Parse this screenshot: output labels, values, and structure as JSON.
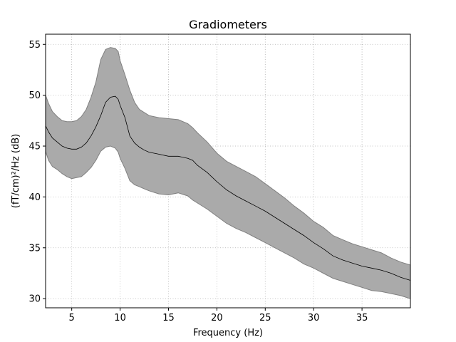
{
  "chart_data": {
    "type": "area",
    "title": "Gradiometers",
    "xlabel": "Frequency (Hz)",
    "ylabel": "(fT/cm)²/Hz (dB)",
    "xlim": [
      2.3,
      40
    ],
    "ylim": [
      29.1,
      56
    ],
    "grid": true,
    "grid_style": "dotted",
    "xticks": [
      5,
      10,
      15,
      20,
      25,
      30,
      35
    ],
    "yticks": [
      30,
      35,
      40,
      45,
      50,
      55
    ],
    "colors": {
      "band": "#aaaaaa",
      "band_edge": "#808080",
      "mean": "#000000"
    },
    "series": [
      {
        "kind": "mean",
        "x": [
          2.3,
          2.6,
          3,
          3.5,
          4,
          4.5,
          5,
          5.5,
          6,
          6.5,
          7,
          7.5,
          8,
          8.5,
          9,
          9.5,
          9.8,
          10,
          10.5,
          11,
          11.5,
          12,
          12.5,
          13,
          14,
          15,
          16,
          17,
          17.5,
          18,
          19,
          20,
          21,
          22,
          23,
          24,
          25,
          26,
          27,
          28,
          29,
          30,
          31,
          32,
          33,
          34,
          35,
          36,
          37,
          38,
          39,
          40
        ],
        "values": [
          47.0,
          46.4,
          45.8,
          45.4,
          45.0,
          44.8,
          44.7,
          44.7,
          44.9,
          45.3,
          46.0,
          46.9,
          48.0,
          49.3,
          49.8,
          49.9,
          49.6,
          49.0,
          47.8,
          46.0,
          45.3,
          44.9,
          44.6,
          44.4,
          44.2,
          44.0,
          44.0,
          43.8,
          43.6,
          43.1,
          42.4,
          41.5,
          40.7,
          40.1,
          39.6,
          39.1,
          38.6,
          38.0,
          37.4,
          36.8,
          36.2,
          35.5,
          34.9,
          34.2,
          33.8,
          33.5,
          33.2,
          33.0,
          32.8,
          32.5,
          32.1,
          31.8
        ]
      },
      {
        "kind": "upper",
        "x": [
          2.3,
          2.6,
          3,
          3.5,
          4,
          4.5,
          5,
          5.5,
          6,
          6.5,
          7,
          7.5,
          8,
          8.5,
          9,
          9.5,
          9.8,
          10,
          10.5,
          11,
          11.5,
          12,
          12.5,
          13,
          14,
          15,
          16,
          17,
          17.5,
          18,
          19,
          20,
          21,
          22,
          23,
          24,
          25,
          26,
          27,
          28,
          29,
          30,
          31,
          32,
          33,
          34,
          35,
          36,
          37,
          38,
          39,
          40
        ],
        "values": [
          50.0,
          49.2,
          48.4,
          47.9,
          47.5,
          47.4,
          47.4,
          47.5,
          47.9,
          48.6,
          49.8,
          51.3,
          53.5,
          54.5,
          54.7,
          54.6,
          54.3,
          53.4,
          52.0,
          50.5,
          49.3,
          48.6,
          48.3,
          48.0,
          47.8,
          47.7,
          47.6,
          47.2,
          46.8,
          46.3,
          45.4,
          44.3,
          43.5,
          43.0,
          42.5,
          42.0,
          41.3,
          40.6,
          39.9,
          39.1,
          38.4,
          37.6,
          37.0,
          36.2,
          35.8,
          35.4,
          35.1,
          34.8,
          34.5,
          34.0,
          33.6,
          33.3
        ]
      },
      {
        "kind": "lower",
        "x": [
          2.3,
          2.6,
          3,
          3.5,
          4,
          4.5,
          5,
          5.5,
          6,
          6.5,
          7,
          7.5,
          8,
          8.5,
          9,
          9.5,
          9.8,
          10,
          10.5,
          11,
          11.5,
          12,
          12.5,
          13,
          14,
          15,
          16,
          17,
          17.5,
          18,
          19,
          20,
          21,
          22,
          23,
          24,
          25,
          26,
          27,
          28,
          29,
          30,
          31,
          32,
          33,
          34,
          35,
          36,
          37,
          38,
          39,
          40
        ],
        "values": [
          44.5,
          43.6,
          43.0,
          42.7,
          42.3,
          42.0,
          41.8,
          41.9,
          42.0,
          42.4,
          42.9,
          43.6,
          44.5,
          44.9,
          45.0,
          44.8,
          44.4,
          43.8,
          42.8,
          41.6,
          41.2,
          41.0,
          40.8,
          40.6,
          40.3,
          40.2,
          40.4,
          40.1,
          39.7,
          39.4,
          38.8,
          38.1,
          37.4,
          36.9,
          36.5,
          36.0,
          35.5,
          35.0,
          34.5,
          34.0,
          33.4,
          33.0,
          32.5,
          32.0,
          31.7,
          31.4,
          31.1,
          30.8,
          30.7,
          30.5,
          30.3,
          30.0
        ]
      }
    ]
  }
}
